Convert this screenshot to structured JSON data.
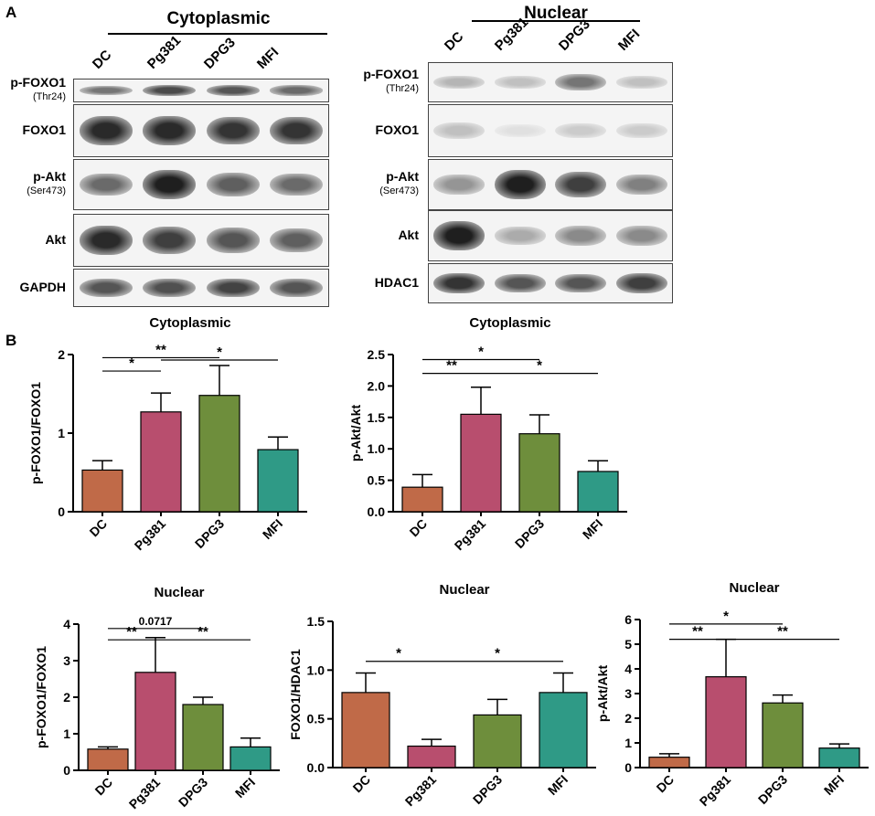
{
  "panel_a": {
    "letter": "A",
    "groups": [
      {
        "title": "Cytoplasmic",
        "lanes": [
          "DC",
          "Pg381",
          "DPG3",
          "MFI"
        ],
        "blots": [
          {
            "label": "p-FOXO1",
            "sublabel": "(Thr24)",
            "intensity": [
              0.55,
              0.75,
              0.7,
              0.6
            ]
          },
          {
            "label": "FOXO1",
            "sublabel": "",
            "intensity": [
              0.9,
              0.9,
              0.85,
              0.85
            ]
          },
          {
            "label": "p-Akt",
            "sublabel": "(Ser473)",
            "intensity": [
              0.6,
              0.95,
              0.65,
              0.6
            ]
          },
          {
            "label": "Akt",
            "sublabel": "",
            "intensity": [
              0.9,
              0.8,
              0.7,
              0.65
            ]
          },
          {
            "label": "GAPDH",
            "sublabel": "",
            "intensity": [
              0.7,
              0.72,
              0.78,
              0.7
            ]
          }
        ]
      },
      {
        "title": "Nuclear",
        "lanes": [
          "DC",
          "Pg381",
          "DPG3",
          "MFI"
        ],
        "blots": [
          {
            "label": "p-FOXO1",
            "sublabel": "(Thr24)",
            "intensity": [
              0.25,
              0.2,
              0.55,
              0.2
            ]
          },
          {
            "label": "FOXO1",
            "sublabel": "",
            "intensity": [
              0.2,
              0.05,
              0.15,
              0.15
            ]
          },
          {
            "label": "p-Akt",
            "sublabel": "(Ser473)",
            "intensity": [
              0.4,
              0.95,
              0.8,
              0.5
            ]
          },
          {
            "label": "Akt",
            "sublabel": "",
            "intensity": [
              0.95,
              0.3,
              0.45,
              0.45
            ]
          },
          {
            "label": "HDAC1",
            "sublabel": "",
            "intensity": [
              0.85,
              0.7,
              0.7,
              0.8
            ]
          }
        ]
      }
    ]
  },
  "panel_b": {
    "letter": "B"
  },
  "colors": {
    "DC": "#c06a48",
    "Pg381": "#b84e6e",
    "DPG3": "#6e8e3c",
    "MFI": "#2f9a86"
  },
  "chart_data": [
    {
      "type": "bar",
      "title": "Cytoplasmic",
      "ylabel": "p-FOXO1/FOXO1",
      "categories": [
        "DC",
        "Pg381",
        "DPG3",
        "MFI"
      ],
      "values": [
        0.53,
        1.27,
        1.48,
        0.79
      ],
      "errors": [
        0.12,
        0.24,
        0.38,
        0.16
      ],
      "ylim": [
        0,
        2
      ],
      "yticks": [
        "0",
        "1",
        "2"
      ],
      "yticks_values": [
        0,
        1,
        2
      ],
      "significance": [
        {
          "from": 0,
          "to": 2,
          "label": "**",
          "level": 1.96
        },
        {
          "from": 0,
          "to": 1,
          "label": "*",
          "level": 1.79
        },
        {
          "from": 1,
          "to": 3,
          "label": "*",
          "level": 1.93
        }
      ]
    },
    {
      "type": "bar",
      "title": "Cytoplasmic",
      "ylabel": "p-Akt/Akt",
      "categories": [
        "DC",
        "Pg381",
        "DPG3",
        "MFI"
      ],
      "values": [
        0.39,
        1.55,
        1.24,
        0.64
      ],
      "errors": [
        0.2,
        0.43,
        0.3,
        0.17
      ],
      "ylim": [
        0,
        2.5
      ],
      "yticks": [
        "0.0",
        "0.5",
        "1.0",
        "1.5",
        "2.0",
        "2.5"
      ],
      "yticks_values": [
        0,
        0.5,
        1.0,
        1.5,
        2.0,
        2.5
      ],
      "significance": [
        {
          "from": 0,
          "to": 2,
          "label": "*",
          "level": 2.42
        },
        {
          "from": 0,
          "to": 1,
          "label": "**",
          "level": 2.2
        },
        {
          "from": 1,
          "to": 3,
          "label": "*",
          "level": 2.2
        }
      ]
    },
    {
      "type": "bar",
      "title": "Nuclear",
      "ylabel": "p-FOXO1/FOXO1",
      "categories": [
        "DC",
        "Pg381",
        "DPG3",
        "MFI"
      ],
      "values": [
        0.58,
        2.68,
        1.8,
        0.64
      ],
      "errors": [
        0.06,
        0.95,
        0.2,
        0.24
      ],
      "ylim": [
        0,
        4
      ],
      "yticks": [
        "0",
        "1",
        "2",
        "3",
        "4"
      ],
      "yticks_values": [
        0,
        1,
        2,
        3,
        4
      ],
      "significance": [
        {
          "from": 0,
          "to": 2,
          "label": "0.0717",
          "level": 3.88
        },
        {
          "from": 0,
          "to": 1,
          "label": "**",
          "level": 3.57
        },
        {
          "from": 1,
          "to": 3,
          "label": "**",
          "level": 3.57
        }
      ]
    },
    {
      "type": "bar",
      "title": "Nuclear",
      "ylabel": "FOXO1/HDAC1",
      "categories": [
        "DC",
        "Pg381",
        "DPG3",
        "MFI"
      ],
      "values": [
        0.77,
        0.22,
        0.54,
        0.77
      ],
      "errors": [
        0.2,
        0.07,
        0.16,
        0.2
      ],
      "ylim": [
        0,
        1.5
      ],
      "yticks": [
        "0.0",
        "0.5",
        "1.0",
        "1.5"
      ],
      "yticks_values": [
        0,
        0.5,
        1.0,
        1.5
      ],
      "significance": [
        {
          "from": 0,
          "to": 1,
          "label": "*",
          "level": 1.09
        },
        {
          "from": 1,
          "to": 3,
          "label": "*",
          "level": 1.09
        }
      ]
    },
    {
      "type": "bar",
      "title": "Nuclear",
      "ylabel": "p-Akt/Akt",
      "categories": [
        "DC",
        "Pg381",
        "DPG3",
        "MFI"
      ],
      "values": [
        0.42,
        3.68,
        2.62,
        0.79
      ],
      "errors": [
        0.14,
        1.52,
        0.32,
        0.17
      ],
      "ylim": [
        0,
        6
      ],
      "yticks": [
        "0",
        "1",
        "2",
        "3",
        "4",
        "5",
        "6"
      ],
      "yticks_values": [
        0,
        1,
        2,
        3,
        4,
        5,
        6
      ],
      "significance": [
        {
          "from": 0,
          "to": 2,
          "label": "*",
          "level": 5.82
        },
        {
          "from": 0,
          "to": 1,
          "label": "**",
          "level": 5.2
        },
        {
          "from": 1,
          "to": 3,
          "label": "**",
          "level": 5.2
        }
      ]
    }
  ]
}
